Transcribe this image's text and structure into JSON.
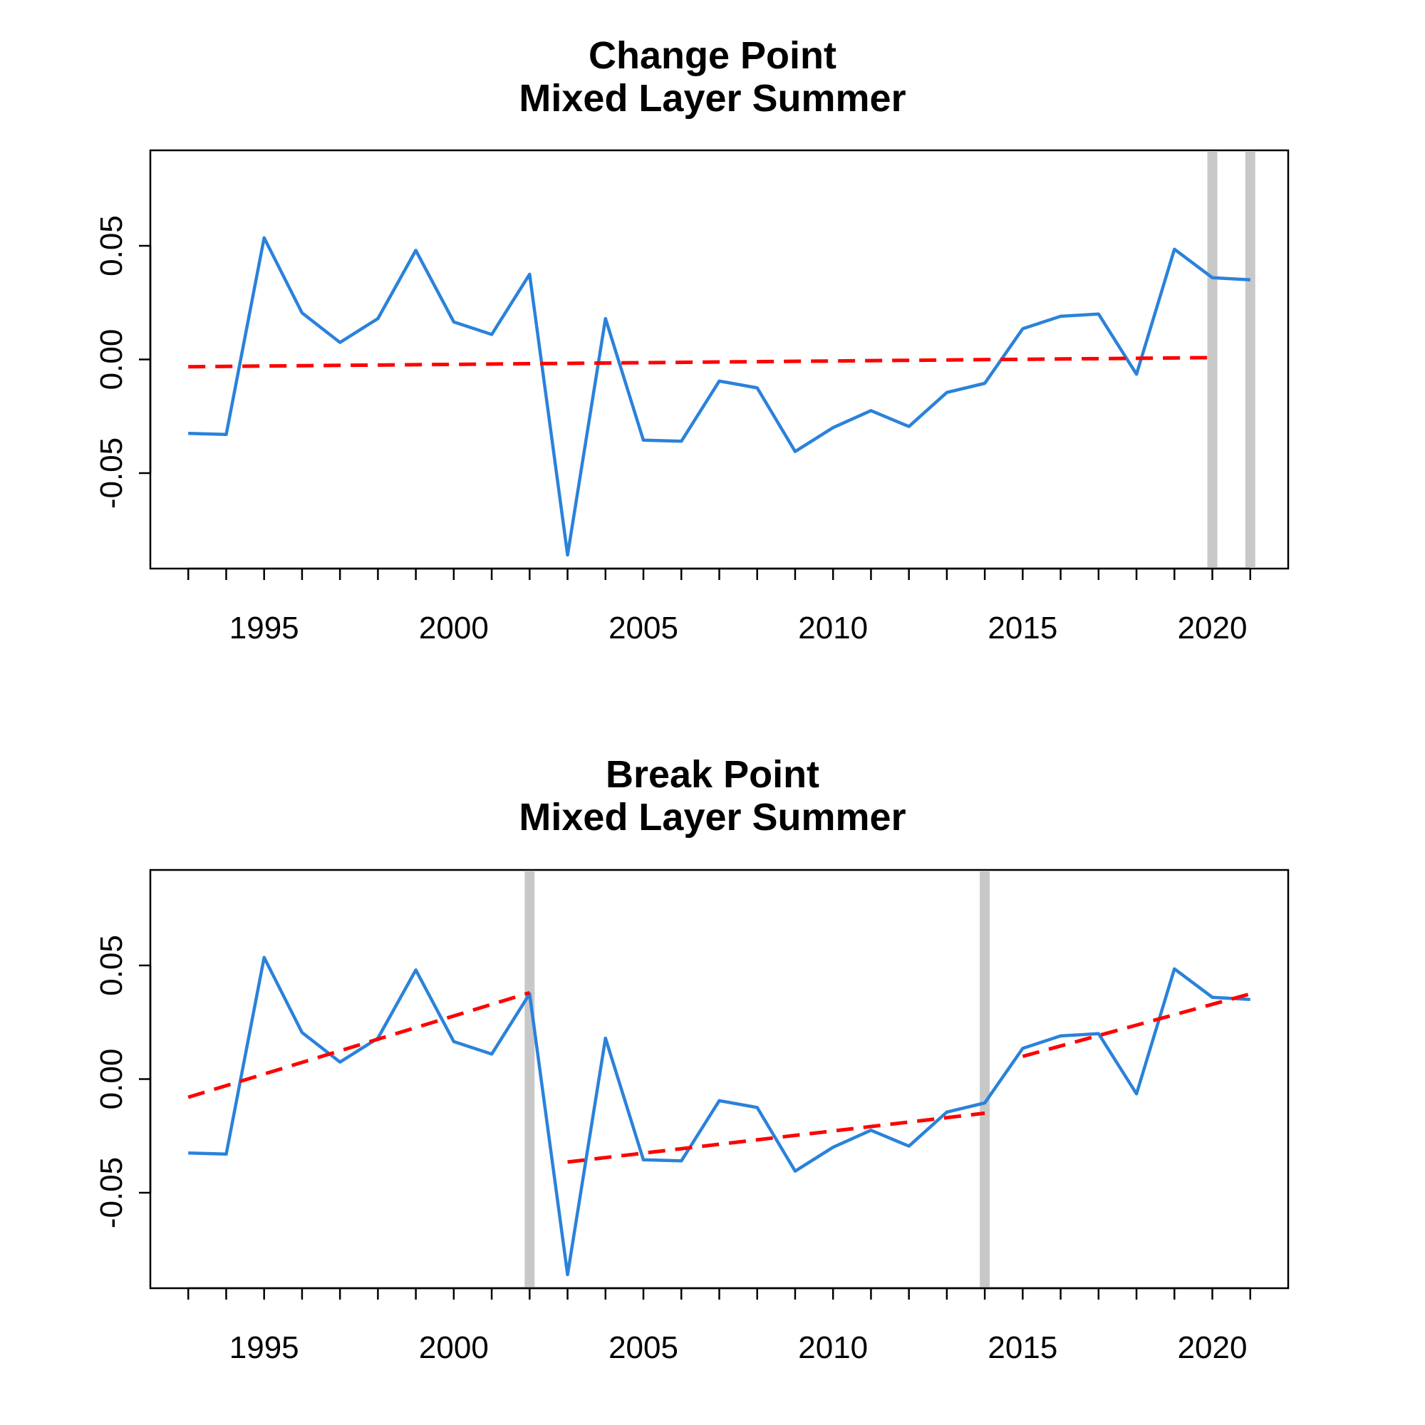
{
  "chart_data": [
    {
      "type": "line",
      "title": "Change Point",
      "subtitle": "Mixed Layer Summer",
      "xlabel": "",
      "ylabel": "",
      "xlim": [
        1992,
        2022
      ],
      "ylim": [
        -0.092,
        0.092
      ],
      "x_ticks": [
        "1995",
        "2000",
        "2005",
        "2010",
        "2015",
        "2020"
      ],
      "y_ticks": [
        "-0.05",
        "0.00",
        "0.05"
      ],
      "grid": false,
      "legend": "none",
      "series": [
        {
          "color": "#2A82DA",
          "style": "solid",
          "x": [
            1993,
            1994,
            1995,
            1996,
            1997,
            1998,
            1999,
            2000,
            2001,
            2002,
            2003,
            2004,
            2005,
            2006,
            2007,
            2008,
            2009,
            2010,
            2011,
            2012,
            2013,
            2014,
            2015,
            2016,
            2017,
            2018,
            2019,
            2020,
            2021
          ],
          "values": [
            -0.0325,
            -0.033,
            0.0535,
            0.0205,
            0.0075,
            0.018,
            0.048,
            0.0165,
            0.011,
            0.0375,
            -0.086,
            0.018,
            -0.0355,
            -0.036,
            -0.0095,
            -0.0125,
            -0.0405,
            -0.03,
            -0.0225,
            -0.0295,
            -0.0145,
            -0.0105,
            0.0135,
            0.019,
            0.02,
            -0.0065,
            0.0485,
            0.036,
            0.035
          ]
        },
        {
          "color": "#FF0000",
          "style": "dashed",
          "x": [
            1993,
            2020
          ],
          "values": [
            -0.0032,
            0.0008
          ]
        }
      ],
      "vertical_lines": {
        "x": [
          2020,
          2021
        ],
        "color": "#C8C8C8"
      }
    },
    {
      "type": "line",
      "title": "Break Point",
      "subtitle": "Mixed Layer Summer",
      "xlabel": "",
      "ylabel": "",
      "xlim": [
        1992,
        2022
      ],
      "ylim": [
        -0.092,
        0.092
      ],
      "x_ticks": [
        "1995",
        "2000",
        "2005",
        "2010",
        "2015",
        "2020"
      ],
      "y_ticks": [
        "-0.05",
        "0.00",
        "0.05"
      ],
      "grid": false,
      "legend": "none",
      "series": [
        {
          "color": "#2A82DA",
          "style": "solid",
          "x": [
            1993,
            1994,
            1995,
            1996,
            1997,
            1998,
            1999,
            2000,
            2001,
            2002,
            2003,
            2004,
            2005,
            2006,
            2007,
            2008,
            2009,
            2010,
            2011,
            2012,
            2013,
            2014,
            2015,
            2016,
            2017,
            2018,
            2019,
            2020,
            2021
          ],
          "values": [
            -0.0325,
            -0.033,
            0.0535,
            0.0205,
            0.0075,
            0.018,
            0.048,
            0.0165,
            0.011,
            0.0375,
            -0.086,
            0.018,
            -0.0355,
            -0.036,
            -0.0095,
            -0.0125,
            -0.0405,
            -0.03,
            -0.0225,
            -0.0295,
            -0.0145,
            -0.0105,
            0.0135,
            0.019,
            0.02,
            -0.0065,
            0.0485,
            0.036,
            0.035
          ]
        },
        {
          "color": "#FF0000",
          "style": "dashed",
          "x": [
            1993,
            2002
          ],
          "values": [
            -0.008,
            0.038
          ]
        },
        {
          "color": "#FF0000",
          "style": "dashed",
          "x": [
            2003,
            2014
          ],
          "values": [
            -0.0365,
            -0.015
          ]
        },
        {
          "color": "#FF0000",
          "style": "dashed",
          "x": [
            2015,
            2021
          ],
          "values": [
            0.01,
            0.0375
          ]
        }
      ],
      "vertical_lines": {
        "x": [
          2002,
          2014
        ],
        "color": "#C8C8C8"
      }
    }
  ]
}
